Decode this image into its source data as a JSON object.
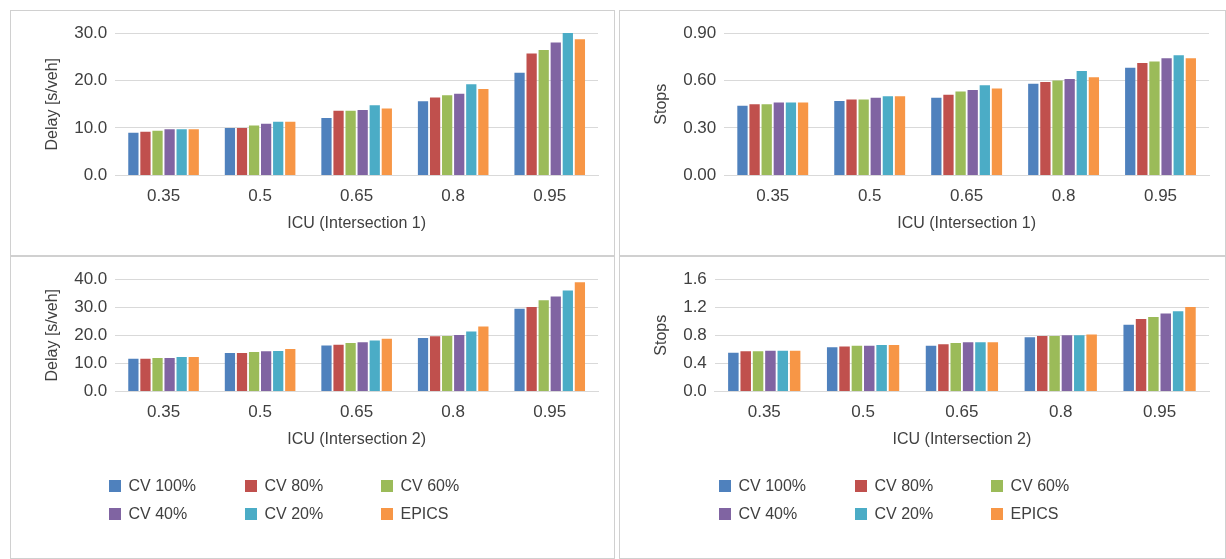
{
  "chart_data": [
    {
      "type": "bar",
      "xlabel": "ICU (Intersection 1)",
      "ylabel": "Delay [s/veh]",
      "categories": [
        "0.35",
        "0.5",
        "0.65",
        "0.8",
        "0.95"
      ],
      "ylim": [
        0,
        30
      ],
      "yticks": [
        {
          "value": 0,
          "label": "0.0"
        },
        {
          "value": 10,
          "label": "10.0"
        },
        {
          "value": 20,
          "label": "20.0"
        },
        {
          "value": 30,
          "label": "30.0"
        }
      ],
      "grid": "y",
      "legend": false,
      "series": [
        {
          "color": "#4f81bd",
          "values": [
            9.0,
            10.0,
            12.1,
            15.6,
            21.6
          ]
        },
        {
          "color": "#c0504d",
          "values": [
            9.2,
            10.0,
            13.6,
            16.4,
            25.7
          ]
        },
        {
          "color": "#9bbb59",
          "values": [
            9.4,
            10.5,
            13.6,
            16.9,
            26.4
          ]
        },
        {
          "color": "#8064a2",
          "values": [
            9.7,
            10.9,
            13.8,
            17.2,
            28.0
          ]
        },
        {
          "color": "#4bacc6",
          "values": [
            9.7,
            11.3,
            14.8,
            19.2,
            30.0
          ]
        },
        {
          "color": "#f79646",
          "values": [
            9.7,
            11.3,
            14.1,
            18.2,
            28.7
          ]
        }
      ]
    },
    {
      "type": "bar",
      "xlabel": "ICU (Intersection 1)",
      "ylabel": "Stops",
      "categories": [
        "0.35",
        "0.5",
        "0.65",
        "0.8",
        "0.95"
      ],
      "ylim": [
        0,
        0.9
      ],
      "yticks": [
        {
          "value": 0,
          "label": "0.00"
        },
        {
          "value": 0.3,
          "label": "0.30"
        },
        {
          "value": 0.6,
          "label": "0.60"
        },
        {
          "value": 0.9,
          "label": "0.90"
        }
      ],
      "grid": "y",
      "legend": false,
      "series": [
        {
          "color": "#4f81bd",
          "values": [
            0.44,
            0.47,
            0.49,
            0.58,
            0.68
          ]
        },
        {
          "color": "#c0504d",
          "values": [
            0.45,
            0.48,
            0.51,
            0.59,
            0.71
          ]
        },
        {
          "color": "#9bbb59",
          "values": [
            0.45,
            0.48,
            0.53,
            0.6,
            0.72
          ]
        },
        {
          "color": "#8064a2",
          "values": [
            0.46,
            0.49,
            0.54,
            0.61,
            0.74
          ]
        },
        {
          "color": "#4bacc6",
          "values": [
            0.46,
            0.5,
            0.57,
            0.66,
            0.76
          ]
        },
        {
          "color": "#f79646",
          "values": [
            0.46,
            0.5,
            0.55,
            0.62,
            0.74
          ]
        }
      ]
    },
    {
      "type": "bar",
      "xlabel": "ICU (Intersection 2)",
      "ylabel": "Delay [s/veh]",
      "categories": [
        "0.35",
        "0.5",
        "0.65",
        "0.8",
        "0.95"
      ],
      "ylim": [
        0,
        40
      ],
      "yticks": [
        {
          "value": 0,
          "label": "0.0"
        },
        {
          "value": 10,
          "label": "10.0"
        },
        {
          "value": 20,
          "label": "20.0"
        },
        {
          "value": 30,
          "label": "30.0"
        },
        {
          "value": 40,
          "label": "40.0"
        }
      ],
      "grid": "y",
      "legend": "bottom",
      "series": [
        {
          "name": "CV 100%",
          "color": "#4f81bd",
          "values": [
            11.6,
            13.7,
            16.3,
            19.0,
            29.4
          ]
        },
        {
          "name": "CV 80%",
          "color": "#c0504d",
          "values": [
            11.6,
            13.7,
            16.6,
            19.6,
            30.0
          ]
        },
        {
          "name": "CV 60%",
          "color": "#9bbb59",
          "values": [
            11.9,
            14.0,
            17.2,
            19.7,
            32.4
          ]
        },
        {
          "name": "CV 40%",
          "color": "#8064a2",
          "values": [
            11.9,
            14.3,
            17.5,
            20.1,
            33.8
          ]
        },
        {
          "name": "CV 20%",
          "color": "#4bacc6",
          "values": [
            12.2,
            14.4,
            18.1,
            21.3,
            35.9
          ]
        },
        {
          "name": "EPICS",
          "color": "#f79646",
          "values": [
            12.2,
            15.1,
            18.7,
            23.1,
            38.8
          ]
        }
      ]
    },
    {
      "type": "bar",
      "xlabel": "ICU (Intersection 2)",
      "ylabel": "Stops",
      "categories": [
        "0.35",
        "0.5",
        "0.65",
        "0.8",
        "0.95"
      ],
      "ylim": [
        0,
        1.6
      ],
      "yticks": [
        {
          "value": 0,
          "label": "0.0"
        },
        0.4,
        0.8,
        1.2,
        1.6
      ],
      "grid": "y",
      "legend": "bottom",
      "series": [
        {
          "name": "CV 100%",
          "color": "#4f81bd",
          "values": [
            0.55,
            0.63,
            0.65,
            0.77,
            0.95
          ]
        },
        {
          "name": "CV 80%",
          "color": "#c0504d",
          "values": [
            0.57,
            0.64,
            0.67,
            0.79,
            1.03
          ]
        },
        {
          "name": "CV 60%",
          "color": "#9bbb59",
          "values": [
            0.57,
            0.65,
            0.69,
            0.79,
            1.06
          ]
        },
        {
          "name": "CV 40%",
          "color": "#8064a2",
          "values": [
            0.58,
            0.65,
            0.7,
            0.8,
            1.11
          ]
        },
        {
          "name": "CV 20%",
          "color": "#4bacc6",
          "values": [
            0.58,
            0.66,
            0.7,
            0.8,
            1.14
          ]
        },
        {
          "name": "EPICS",
          "color": "#f79646",
          "values": [
            0.58,
            0.66,
            0.7,
            0.81,
            1.2
          ]
        }
      ]
    }
  ]
}
